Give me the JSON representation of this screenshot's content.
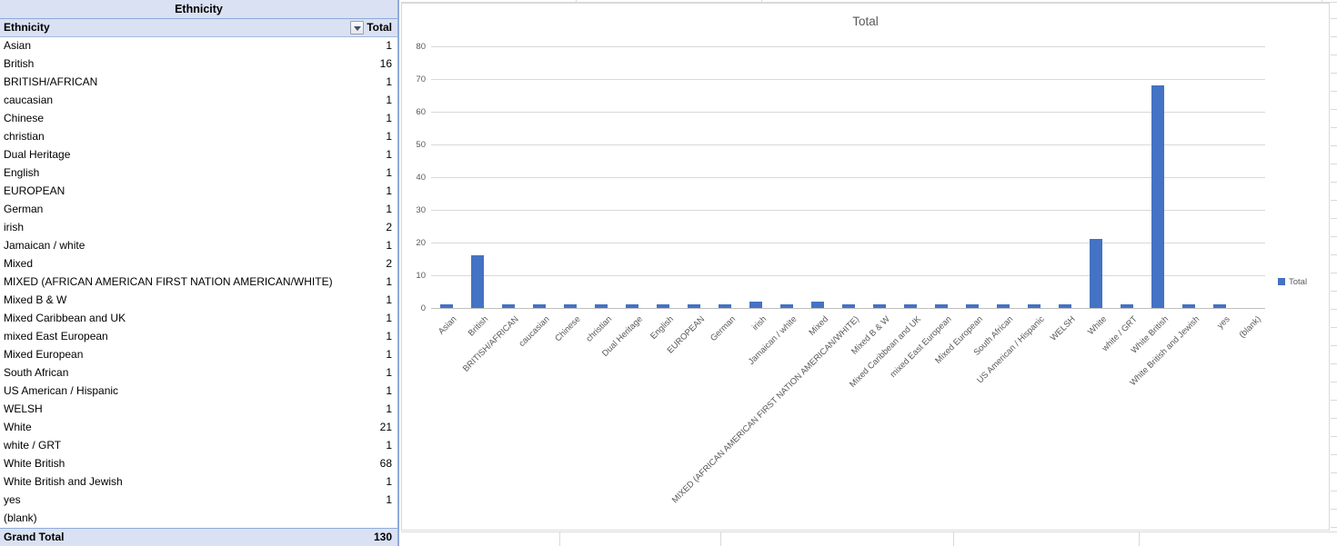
{
  "table": {
    "title": "Ethnicity",
    "field_header": "Ethnicity",
    "value_header": "Total",
    "filter_icon": "dropdown-arrow-icon",
    "rows": [
      {
        "label": "Asian",
        "value": "1"
      },
      {
        "label": "British",
        "value": "16"
      },
      {
        "label": "BRITISH/AFRICAN",
        "value": "1"
      },
      {
        "label": "caucasian",
        "value": "1"
      },
      {
        "label": "Chinese",
        "value": "1"
      },
      {
        "label": "christian",
        "value": "1"
      },
      {
        "label": "Dual Heritage",
        "value": "1"
      },
      {
        "label": "English",
        "value": "1"
      },
      {
        "label": "EUROPEAN",
        "value": "1"
      },
      {
        "label": "German",
        "value": "1"
      },
      {
        "label": "irish",
        "value": "2"
      },
      {
        "label": "Jamaican / white",
        "value": "1"
      },
      {
        "label": "Mixed",
        "value": "2"
      },
      {
        "label": "MIXED (AFRICAN AMERICAN FIRST NATION AMERICAN/WHITE)",
        "value": "1"
      },
      {
        "label": "Mixed B & W",
        "value": "1"
      },
      {
        "label": "Mixed Caribbean and UK",
        "value": "1"
      },
      {
        "label": "mixed East European",
        "value": "1"
      },
      {
        "label": "Mixed European",
        "value": "1"
      },
      {
        "label": "South African",
        "value": "1"
      },
      {
        "label": "US American / Hispanic",
        "value": "1"
      },
      {
        "label": "WELSH",
        "value": "1"
      },
      {
        "label": "White",
        "value": "21"
      },
      {
        "label": "white / GRT",
        "value": "1"
      },
      {
        "label": "White British",
        "value": "68"
      },
      {
        "label": "White British and Jewish",
        "value": "1"
      },
      {
        "label": "yes",
        "value": "1"
      },
      {
        "label": "(blank)",
        "value": ""
      }
    ],
    "grand_total_label": "Grand Total",
    "grand_total_value": "130"
  },
  "chart_data": {
    "type": "bar",
    "title": "Total",
    "categories": [
      "Asian",
      "British",
      "BRITISH/AFRICAN",
      "caucasian",
      "Chinese",
      "christian",
      "Dual Heritage",
      "English",
      "EUROPEAN",
      "German",
      "irish",
      "Jamaican / white",
      "Mixed",
      "MIXED (AFRICAN AMERICAN FIRST NATION AMERICAN/WHITE)",
      "Mixed B & W",
      "Mixed Caribbean and UK",
      "mixed East European",
      "Mixed European",
      "South African",
      "US American / Hispanic",
      "WELSH",
      "White",
      "white / GRT",
      "White British",
      "White British and Jewish",
      "yes",
      "(blank)"
    ],
    "values": [
      1,
      16,
      1,
      1,
      1,
      1,
      1,
      1,
      1,
      1,
      2,
      1,
      2,
      1,
      1,
      1,
      1,
      1,
      1,
      1,
      1,
      21,
      1,
      68,
      1,
      1,
      0
    ],
    "series": [
      {
        "name": "Total",
        "values": [
          1,
          16,
          1,
          1,
          1,
          1,
          1,
          1,
          1,
          1,
          2,
          1,
          2,
          1,
          1,
          1,
          1,
          1,
          1,
          1,
          1,
          21,
          1,
          68,
          1,
          1,
          0
        ]
      }
    ],
    "xlabel": "",
    "ylabel": "",
    "ylim": [
      0,
      80
    ],
    "yticks": [
      0,
      10,
      20,
      30,
      40,
      50,
      60,
      70,
      80
    ],
    "grid": true,
    "legend": [
      "Total"
    ],
    "legend_position": "right",
    "x_label_rotation_deg": 45
  },
  "colors": {
    "bar_fill": "#4472C4",
    "pivot_header_bg": "#D9E1F2",
    "pivot_border_blue": "#8EAADB",
    "chart_text_gray": "#595959",
    "chart_gridline": "#D9D9D9",
    "axis_line": "#BFBFBF",
    "sheet_gridline": "#D9D9D9"
  }
}
